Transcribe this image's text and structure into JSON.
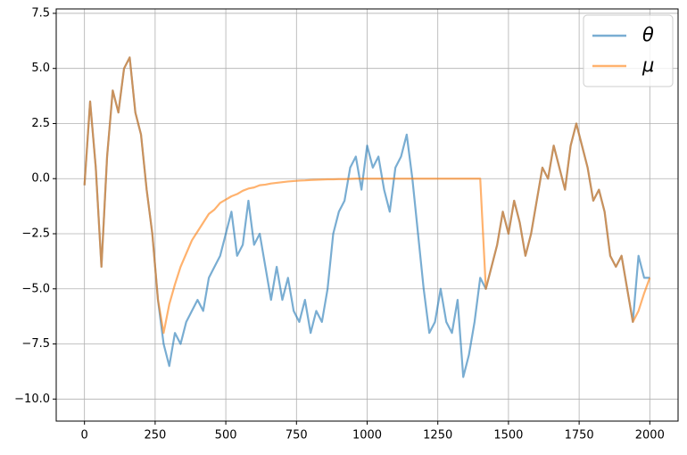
{
  "chart_data": {
    "type": "line",
    "x": [
      0,
      20,
      40,
      60,
      80,
      100,
      120,
      140,
      160,
      180,
      200,
      220,
      240,
      260,
      280,
      300,
      320,
      340,
      360,
      380,
      400,
      420,
      440,
      460,
      480,
      500,
      520,
      540,
      560,
      580,
      600,
      620,
      640,
      660,
      680,
      700,
      720,
      740,
      760,
      780,
      800,
      820,
      840,
      860,
      880,
      900,
      920,
      940,
      960,
      980,
      1000,
      1020,
      1040,
      1060,
      1080,
      1100,
      1120,
      1140,
      1160,
      1180,
      1200,
      1220,
      1240,
      1260,
      1280,
      1300,
      1320,
      1340,
      1360,
      1380,
      1400,
      1420,
      1440,
      1460,
      1480,
      1500,
      1520,
      1540,
      1560,
      1580,
      1600,
      1620,
      1640,
      1660,
      1680,
      1700,
      1720,
      1740,
      1760,
      1780,
      1800,
      1820,
      1840,
      1860,
      1880,
      1900,
      1920,
      1940,
      1960,
      1980,
      2000
    ],
    "series": [
      {
        "name": "θ",
        "color": "#1f77b4",
        "values": [
          -0.3,
          3.5,
          0.5,
          -4.0,
          1.0,
          4.0,
          3.0,
          5.0,
          5.5,
          3.0,
          2.0,
          -0.5,
          -2.5,
          -5.5,
          -7.5,
          -8.5,
          -7.0,
          -7.5,
          -6.5,
          -6.0,
          -5.5,
          -6.0,
          -4.5,
          -4.0,
          -3.5,
          -2.5,
          -1.5,
          -3.5,
          -3.0,
          -1.0,
          -3.0,
          -2.5,
          -4.0,
          -5.5,
          -4.0,
          -5.5,
          -4.5,
          -6.0,
          -6.5,
          -5.5,
          -7.0,
          -6.0,
          -6.5,
          -5.0,
          -2.5,
          -1.5,
          -1.0,
          0.5,
          1.0,
          -0.5,
          1.5,
          0.5,
          1.0,
          -0.5,
          -1.5,
          0.5,
          1.0,
          2.0,
          0.0,
          -2.5,
          -5.0,
          -7.0,
          -6.5,
          -5.0,
          -6.5,
          -7.0,
          -5.5,
          -9.0,
          -8.0,
          -6.5,
          -4.5,
          -5.0,
          -4.0,
          -3.0,
          -1.5,
          -2.5,
          -1.0,
          -2.0,
          -3.5,
          -2.5,
          -1.0,
          0.5,
          0.0,
          1.5,
          0.5,
          -0.5,
          1.5,
          2.5,
          1.5,
          0.5,
          -1.0,
          -0.5,
          -1.5,
          -3.5,
          -4.0,
          -3.5,
          -5.0,
          -6.5,
          -3.5,
          -4.5,
          -4.5
        ]
      },
      {
        "name": "μ",
        "color": "#ff7f0e",
        "values": [
          -0.3,
          3.5,
          0.5,
          -4.0,
          1.0,
          4.0,
          3.0,
          5.0,
          5.5,
          3.0,
          2.0,
          -0.5,
          -2.5,
          -5.5,
          -7.0,
          -5.7,
          -4.8,
          -4.0,
          -3.4,
          -2.8,
          -2.4,
          -2.0,
          -1.6,
          -1.4,
          -1.1,
          -0.95,
          -0.8,
          -0.7,
          -0.55,
          -0.45,
          -0.4,
          -0.3,
          -0.27,
          -0.22,
          -0.19,
          -0.16,
          -0.13,
          -0.11,
          -0.09,
          -0.08,
          -0.06,
          -0.05,
          -0.04,
          -0.03,
          -0.03,
          -0.02,
          -0.02,
          -0.01,
          0,
          0,
          0,
          0,
          0,
          0,
          0,
          0,
          0,
          0,
          0,
          0,
          0,
          0,
          0,
          0,
          0,
          0,
          0,
          0,
          0,
          0,
          0,
          -5.0,
          -4.0,
          -3.0,
          -1.5,
          -2.5,
          -1.0,
          -2.0,
          -3.5,
          -2.5,
          -1.0,
          0.5,
          0.0,
          1.5,
          0.5,
          -0.5,
          1.5,
          2.5,
          1.5,
          0.5,
          -1.0,
          -0.5,
          -1.5,
          -3.5,
          -4.0,
          -3.5,
          -5.0,
          -6.5,
          -6.0,
          -5.2,
          -4.5
        ]
      }
    ],
    "xlim": [
      -100,
      2100
    ],
    "ylim": [
      -11.0,
      7.7
    ],
    "xticks": [
      0,
      250,
      500,
      750,
      1000,
      1250,
      1500,
      1750,
      2000
    ],
    "yticks": [
      {
        "value": -10,
        "label": "−10.0"
      },
      {
        "value": -7.5,
        "label": "−7.5"
      },
      {
        "value": -5,
        "label": "−5.0"
      },
      {
        "value": -2.5,
        "label": "−2.5"
      },
      {
        "value": 0,
        "label": "0.0"
      },
      {
        "value": 2.5,
        "label": "2.5"
      },
      {
        "value": 5,
        "label": "5.0"
      },
      {
        "value": 7.5,
        "label": "7.5"
      }
    ],
    "grid": true,
    "legend": "upper right"
  }
}
